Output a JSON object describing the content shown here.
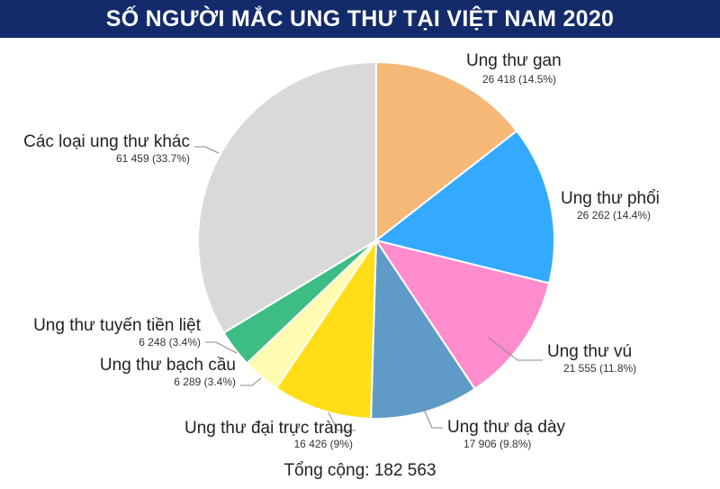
{
  "title": "SỐ NGƯỜI MẮC UNG THƯ TẠI VIỆT NAM 2020",
  "chart_data": {
    "type": "pie",
    "title": "SỐ NGƯỜI MẮC UNG THƯ TẠI VIỆT NAM 2020",
    "slices": [
      {
        "name": "Ung thư gan",
        "value": 26418,
        "value_label": "26 418 (14.5%)",
        "color": "#f6b876"
      },
      {
        "name": "Ung thư phổi",
        "value": 26262,
        "value_label": "26 262 (14.4%)",
        "color": "#33aaff"
      },
      {
        "name": "Ung thư vú",
        "value": 21555,
        "value_label": "21 555 (11.8%)",
        "color": "#ff8ccd"
      },
      {
        "name": "Ung thư dạ dày",
        "value": 17906,
        "value_label": "17 906 (9.8%)",
        "color": "#5f9bc6"
      },
      {
        "name": "Ung thư đại trực tràng",
        "value": 16426,
        "value_label": "16 426 (9%)",
        "color": "#ffde17"
      },
      {
        "name": "Ung thư bạch cầu",
        "value": 6289,
        "value_label": "6 289 (3.4%)",
        "color": "#fffbb0"
      },
      {
        "name": "Ung thư tuyến tiền liệt",
        "value": 6248,
        "value_label": "6 248 (3.4%)",
        "color": "#3dbd84"
      },
      {
        "name": "Các loại ung thư khác",
        "value": 61459,
        "value_label": "61 459 (33.7%)",
        "color": "#d9d9d9"
      }
    ],
    "total_label": "Tổng cộng",
    "total_value": "182 563"
  }
}
